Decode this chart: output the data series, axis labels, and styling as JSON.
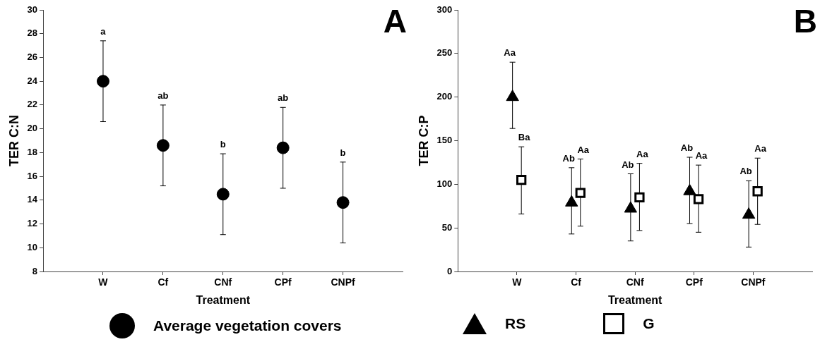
{
  "chart_data": [
    {
      "type": "scatter",
      "ylabel": "TER C:N",
      "xlabel": "Treatment",
      "categories": [
        "W",
        "Cf",
        "CNf",
        "CPf",
        "CNPf"
      ],
      "ylim": [
        8,
        30
      ],
      "yticks": [
        8,
        10,
        12,
        14,
        16,
        18,
        20,
        22,
        24,
        26,
        28,
        30
      ],
      "legend": "bottom",
      "series": [
        {
          "name": "Average vegetation covers",
          "color": "#000000",
          "marker": "circle",
          "values": [
            24,
            18.6,
            14.5,
            18.4,
            13.8
          ],
          "errors": [
            [
              20.6,
              27.4
            ],
            [
              15.2,
              22
            ],
            [
              11.1,
              17.9
            ],
            [
              15,
              21.8
            ],
            [
              10.4,
              17.2
            ]
          ]
        }
      ],
      "annotations": [
        "A",
        {
          "text": "a",
          "x": "W",
          "y": 27.4
        },
        {
          "text": "ab",
          "x": "Cf",
          "y": 22
        },
        {
          "text": "b",
          "x": "CNf",
          "y": 17.9
        },
        {
          "text": "ab",
          "x": "CPf",
          "y": 21.8
        },
        {
          "text": "b",
          "x": "CNPf",
          "y": 17.2
        }
      ]
    },
    {
      "type": "scatter",
      "ylabel": "TER C:P",
      "xlabel": "Treatment",
      "categories": [
        "W",
        "Cf",
        "CNf",
        "CPf",
        "CNPf"
      ],
      "ylim": [
        0,
        300
      ],
      "yticks": [
        0,
        50,
        100,
        150,
        200,
        250,
        300
      ],
      "legend": "bottom",
      "series": [
        {
          "name": "RS",
          "color": "#000000",
          "marker": "triangle",
          "values": [
            200,
            79,
            72,
            92,
            65
          ],
          "errors": [
            [
              164,
              240
            ],
            [
              43,
              119
            ],
            [
              35,
              112
            ],
            [
              55,
              131
            ],
            [
              28,
              104
            ]
          ]
        },
        {
          "name": "G",
          "color": "#000000",
          "marker": "square",
          "values": [
            105,
            90,
            85,
            83,
            92
          ],
          "errors": [
            [
              66,
              143
            ],
            [
              52,
              129
            ],
            [
              47,
              124
            ],
            [
              45,
              122
            ],
            [
              54,
              130
            ]
          ]
        }
      ],
      "annotations": [
        "B",
        {
          "text": "Aa",
          "x": "W",
          "y": 240
        },
        {
          "text": "Ba",
          "x": "W",
          "y": 143
        },
        {
          "text": "Ab",
          "x": "Cf",
          "y": 119
        },
        {
          "text": "Aa",
          "x": "Cf",
          "y": 129
        },
        {
          "text": "Ab",
          "x": "CNf",
          "y": 112
        },
        {
          "text": "Aa",
          "x": "CNf",
          "y": 124
        },
        {
          "text": "Ab",
          "x": "CPf",
          "y": 131
        },
        {
          "text": "Aa",
          "x": "CPf",
          "y": 122
        },
        {
          "text": "Ab",
          "x": "CNPf",
          "y": 104
        },
        {
          "text": "Aa",
          "x": "CNPf",
          "y": 130
        }
      ]
    }
  ]
}
